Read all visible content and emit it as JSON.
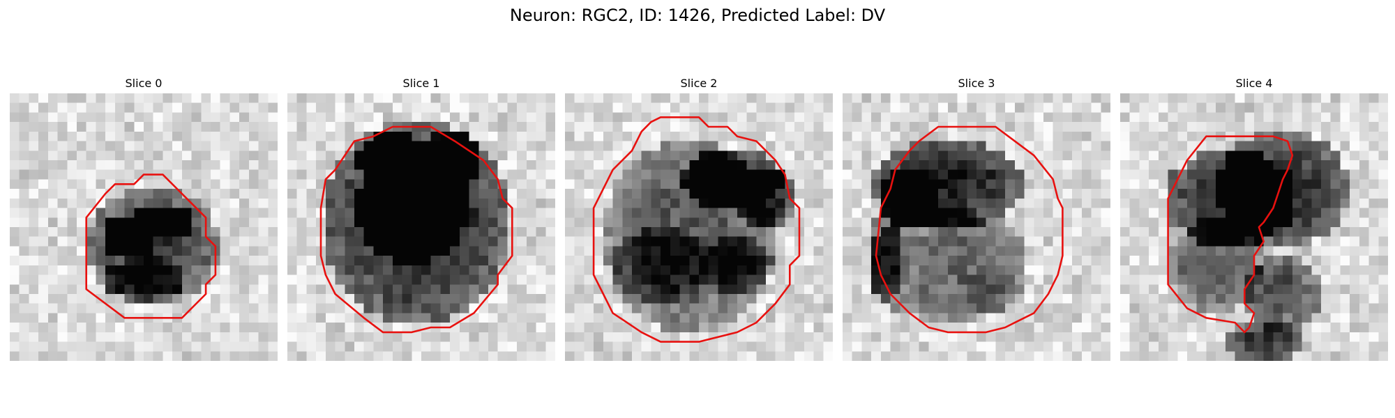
{
  "title": "Neuron: RGC2, ID: 1426, Predicted Label: DV",
  "colors": {
    "contour": "#e8110f",
    "background": "#ffffff"
  },
  "panels": [
    {
      "label": "Slice 0",
      "outline": [
        [
          14,
          8.5
        ],
        [
          16,
          8.5
        ],
        [
          18.5,
          11
        ],
        [
          20.5,
          13
        ],
        [
          20.5,
          15
        ],
        [
          21.5,
          16
        ],
        [
          21.5,
          19
        ],
        [
          20.5,
          20
        ],
        [
          20.5,
          21
        ],
        [
          18,
          23.5
        ],
        [
          12,
          23.5
        ],
        [
          8,
          20.5
        ],
        [
          8,
          13
        ],
        [
          10,
          10.5
        ],
        [
          11,
          9.5
        ],
        [
          13,
          9.5
        ]
      ],
      "blobs": [
        [
          15,
          16,
          7,
          6,
          0.72
        ],
        [
          16,
          13.5,
          3,
          2,
          0.9
        ],
        [
          12.5,
          15,
          3,
          2.2,
          0.85
        ],
        [
          14,
          19.5,
          4.5,
          2.2,
          0.5
        ]
      ]
    },
    {
      "label": "Slice 1",
      "outline": [
        [
          11,
          3.5
        ],
        [
          15,
          3.5
        ],
        [
          17.5,
          5
        ],
        [
          20.5,
          7
        ],
        [
          22,
          9
        ],
        [
          22.5,
          11
        ],
        [
          23.5,
          12
        ],
        [
          23.5,
          17
        ],
        [
          22,
          19
        ],
        [
          22,
          20
        ],
        [
          19.5,
          23
        ],
        [
          17,
          24.5
        ],
        [
          15,
          24.5
        ],
        [
          13,
          25
        ],
        [
          10,
          25
        ],
        [
          8,
          23.5
        ],
        [
          5,
          21
        ],
        [
          4,
          19
        ],
        [
          3.5,
          17
        ],
        [
          3.5,
          12
        ],
        [
          4,
          9
        ],
        [
          5,
          8
        ],
        [
          7,
          5
        ],
        [
          9,
          4.5
        ]
      ],
      "blobs": [
        [
          13.5,
          13.5,
          10,
          10.5,
          0.88
        ],
        [
          13,
          12,
          6,
          6,
          0.95
        ],
        [
          11,
          7,
          4,
          3,
          0.95
        ],
        [
          17,
          7,
          3,
          3,
          0.92
        ]
      ]
    },
    {
      "label": "Slice 2",
      "outline": [
        [
          10,
          2.5
        ],
        [
          14,
          2.5
        ],
        [
          15,
          3.5
        ],
        [
          17,
          3.5
        ],
        [
          18,
          4.5
        ],
        [
          20,
          5
        ],
        [
          22,
          7
        ],
        [
          23,
          8.5
        ],
        [
          23.5,
          11
        ],
        [
          24.5,
          12
        ],
        [
          24.5,
          17
        ],
        [
          23.5,
          18
        ],
        [
          23.5,
          20
        ],
        [
          22,
          22
        ],
        [
          20,
          24
        ],
        [
          18,
          25
        ],
        [
          14,
          26
        ],
        [
          10,
          26
        ],
        [
          8,
          25
        ],
        [
          5,
          23
        ],
        [
          4,
          21
        ],
        [
          3,
          19
        ],
        [
          3,
          12
        ],
        [
          4,
          10
        ],
        [
          5,
          8
        ],
        [
          7,
          6
        ],
        [
          8,
          4
        ],
        [
          9,
          3
        ]
      ],
      "blobs": [
        [
          13,
          15,
          9,
          10,
          0.6
        ],
        [
          17.5,
          9,
          5.5,
          3.5,
          0.85
        ],
        [
          21,
          11,
          3,
          3,
          0.92
        ],
        [
          10,
          18,
          5,
          4,
          0.45
        ],
        [
          18,
          18,
          4,
          3,
          0.55
        ]
      ]
    },
    {
      "label": "Slice 3",
      "outline": [
        [
          10,
          3.5
        ],
        [
          16,
          3.5
        ],
        [
          18,
          5
        ],
        [
          20,
          6.5
        ],
        [
          22,
          9
        ],
        [
          22.5,
          11
        ],
        [
          23,
          12
        ],
        [
          23,
          17
        ],
        [
          22.5,
          19
        ],
        [
          22,
          20
        ],
        [
          21.5,
          21
        ],
        [
          20,
          23
        ],
        [
          18,
          24
        ],
        [
          17,
          24.5
        ],
        [
          15,
          25
        ],
        [
          11,
          25
        ],
        [
          9,
          24.5
        ],
        [
          7,
          23
        ],
        [
          5,
          21
        ],
        [
          4,
          19
        ],
        [
          3.5,
          17
        ],
        [
          4,
          12
        ],
        [
          5,
          10
        ],
        [
          5.5,
          8
        ],
        [
          7,
          6
        ],
        [
          8,
          5
        ]
      ],
      "blobs": [
        [
          11,
          9.5,
          8,
          4.5,
          0.9
        ],
        [
          7,
          11,
          3,
          3,
          0.95
        ],
        [
          11,
          18,
          8.5,
          6,
          0.55
        ],
        [
          16,
          20.5,
          3,
          2.5,
          0.2
        ],
        [
          4.5,
          17,
          2,
          5,
          0.6
        ]
      ]
    },
    {
      "label": "Slice 4",
      "outline": [
        [
          9,
          4.5
        ],
        [
          16,
          4.5
        ],
        [
          17.5,
          5
        ],
        [
          18,
          6.5
        ],
        [
          17.5,
          8
        ],
        [
          17,
          9
        ],
        [
          16.5,
          10.5
        ],
        [
          16,
          12
        ],
        [
          15,
          13.5
        ],
        [
          14.5,
          14
        ],
        [
          15,
          15.5
        ],
        [
          14,
          17
        ],
        [
          14,
          19
        ],
        [
          13,
          20.5
        ],
        [
          13,
          22
        ],
        [
          14,
          23
        ],
        [
          13.5,
          24.5
        ],
        [
          13,
          25
        ],
        [
          12,
          24
        ],
        [
          9,
          23.5
        ],
        [
          7,
          22.5
        ],
        [
          5,
          20
        ],
        [
          5,
          11
        ],
        [
          6,
          9
        ],
        [
          7,
          7
        ]
      ],
      "blobs": [
        [
          11.5,
          11,
          7,
          5,
          0.82
        ],
        [
          17,
          10,
          7,
          6,
          0.85
        ],
        [
          10,
          18,
          5,
          5,
          0.6
        ],
        [
          17,
          21,
          4,
          4,
          0.65
        ],
        [
          15,
          26,
          4,
          2,
          0.8
        ]
      ]
    }
  ]
}
